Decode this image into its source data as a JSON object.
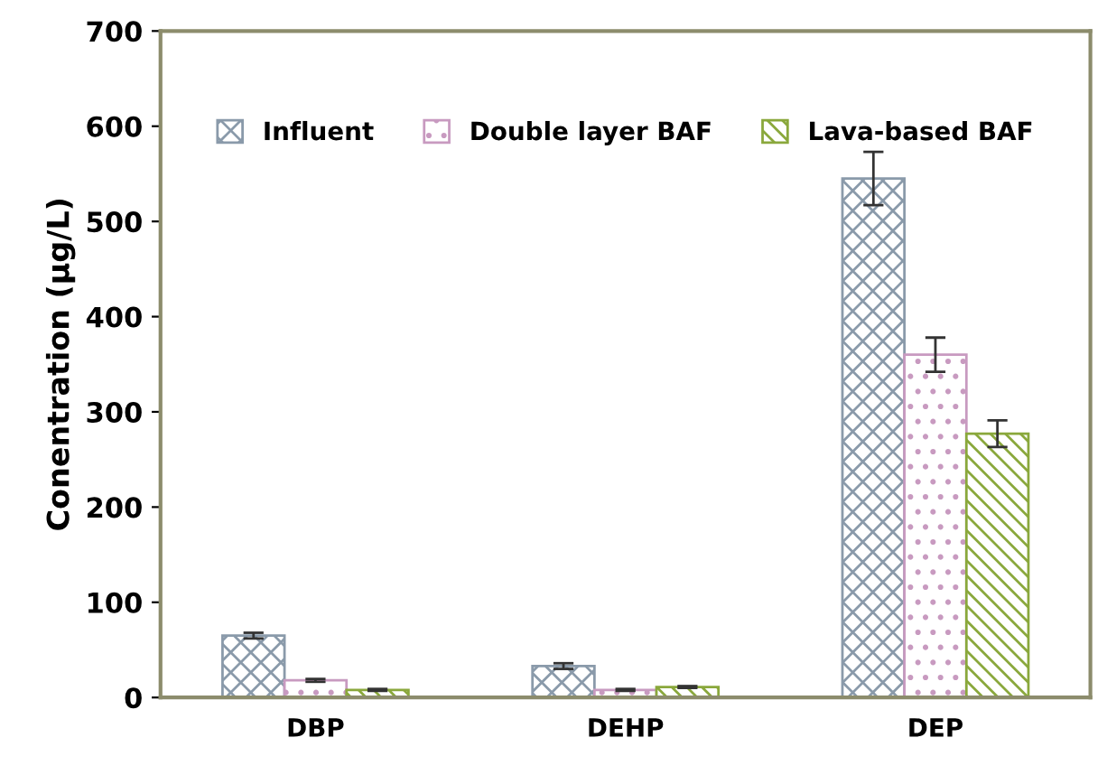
{
  "chart_data": {
    "type": "bar",
    "ylabel": "Conentration (μg/L)",
    "categories": [
      "DBP",
      "DEHP",
      "DEP"
    ],
    "ylim": [
      0,
      700
    ],
    "yticks": [
      0,
      100,
      200,
      300,
      400,
      500,
      600,
      700
    ],
    "grid": false,
    "legend": "top",
    "series": [
      {
        "name": "Influent",
        "color": "#8a9aaa",
        "values": [
          65,
          33,
          545
        ],
        "errors": [
          3,
          3,
          28
        ]
      },
      {
        "name": "Double layer BAF",
        "color": "#c89ac0",
        "values": [
          18,
          8,
          360
        ],
        "errors": [
          1.5,
          1,
          18
        ]
      },
      {
        "name": "Lava-based BAF",
        "color": "#8aa83c",
        "values": [
          8,
          11,
          277
        ],
        "errors": [
          1,
          1,
          14
        ]
      }
    ]
  }
}
